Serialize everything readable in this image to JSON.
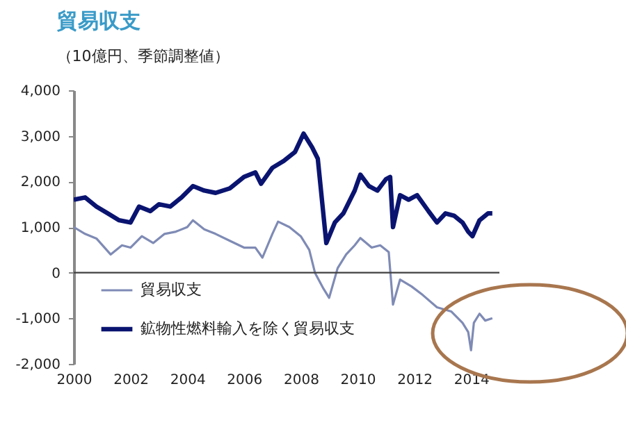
{
  "chart_data": {
    "type": "line",
    "title": "貿易収支",
    "subtitle": "（10億円、季節調整値）",
    "xlim": [
      2000,
      2015
    ],
    "xticks": [
      2000,
      2002,
      2004,
      2006,
      2008,
      2010,
      2012,
      2014
    ],
    "ylim": [
      -2000,
      4000
    ],
    "yticks": [
      {
        "value": 4000,
        "label": "4,000"
      },
      {
        "value": 3000,
        "label": "3,000"
      },
      {
        "value": 2000,
        "label": "2,000"
      },
      {
        "value": 1000,
        "label": "1,000"
      },
      {
        "value": 0,
        "label": "0"
      },
      {
        "value": -1000,
        "label": "-1,000"
      },
      {
        "value": -2000,
        "label": "-2,000"
      }
    ],
    "grid": false,
    "legend": "bottom left",
    "marker": "none",
    "line_style": "solid",
    "ref_lines": [
      {
        "axis": "y",
        "value": 0,
        "color": "#404040"
      }
    ],
    "series": [
      {
        "name": "貿易収支",
        "color": "#7f8bb5",
        "x": [
          2000.0,
          2000.4,
          2000.8,
          2001.3,
          2001.7,
          2002.0,
          2002.4,
          2002.8,
          2003.2,
          2003.6,
          2004.0,
          2004.2,
          2004.6,
          2005.0,
          2005.5,
          2006.0,
          2006.4,
          2006.65,
          2007.0,
          2007.2,
          2007.6,
          2008.0,
          2008.3,
          2008.5,
          2008.8,
          2009.0,
          2009.3,
          2009.6,
          2009.9,
          2010.1,
          2010.5,
          2010.8,
          2011.1,
          2011.25,
          2011.5,
          2011.9,
          2012.3,
          2012.8,
          2013.3,
          2013.7,
          2013.9,
          2014.0,
          2014.1,
          2014.3,
          2014.5,
          2014.75
        ],
        "values": [
          1000,
          850,
          750,
          400,
          600,
          550,
          800,
          650,
          850,
          900,
          1000,
          1150,
          950,
          850,
          700,
          550,
          550,
          330,
          850,
          1120,
          1000,
          800,
          500,
          0,
          -350,
          -550,
          100,
          400,
          600,
          760,
          550,
          600,
          450,
          -700,
          -150,
          -300,
          -490,
          -760,
          -850,
          -1100,
          -1300,
          -1700,
          -1100,
          -900,
          -1050,
          -1000
        ]
      },
      {
        "name": "鉱物性燃料輸入を除く貿易収支",
        "color": "#0a1470",
        "x": [
          2000.0,
          2000.4,
          2000.8,
          2001.2,
          2001.6,
          2002.0,
          2002.3,
          2002.7,
          2003.0,
          2003.4,
          2003.8,
          2004.2,
          2004.6,
          2005.0,
          2005.5,
          2006.0,
          2006.4,
          2006.6,
          2007.0,
          2007.4,
          2007.8,
          2008.1,
          2008.4,
          2008.6,
          2008.9,
          2009.2,
          2009.5,
          2009.9,
          2010.1,
          2010.4,
          2010.7,
          2011.0,
          2011.15,
          2011.25,
          2011.5,
          2011.8,
          2012.1,
          2012.5,
          2012.8,
          2013.1,
          2013.4,
          2013.7,
          2013.9,
          2014.05,
          2014.3,
          2014.6,
          2014.75
        ],
        "values": [
          1600,
          1650,
          1450,
          1300,
          1150,
          1100,
          1450,
          1350,
          1500,
          1450,
          1650,
          1900,
          1800,
          1750,
          1850,
          2100,
          2200,
          1950,
          2300,
          2450,
          2650,
          3050,
          2750,
          2500,
          650,
          1100,
          1300,
          1800,
          2150,
          1900,
          1800,
          2050,
          2100,
          1000,
          1700,
          1600,
          1700,
          1350,
          1100,
          1300,
          1250,
          1100,
          900,
          800,
          1150,
          1300,
          1300
        ]
      }
    ]
  }
}
